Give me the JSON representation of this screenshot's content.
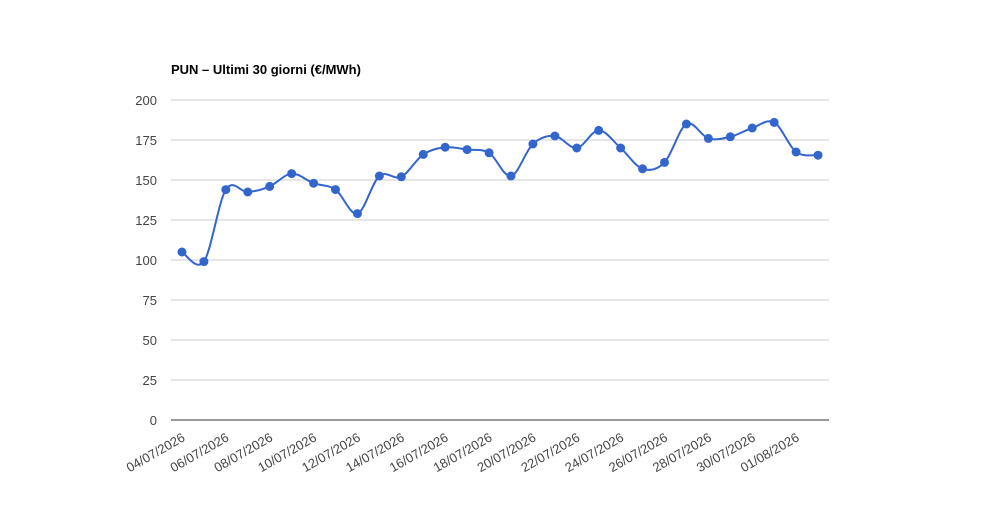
{
  "chart_data": {
    "type": "line",
    "title": "PUN – Ultimi 30 giorni (€/MWh)",
    "categories": [
      "04/07/2026",
      null,
      "06/07/2026",
      null,
      "08/07/2026",
      null,
      "10/07/2026",
      null,
      "12/07/2026",
      null,
      "14/07/2026",
      null,
      "16/07/2026",
      null,
      "18/07/2026",
      null,
      "20/07/2026",
      null,
      "22/07/2026",
      null,
      "24/07/2026",
      null,
      "26/07/2026",
      null,
      "28/07/2026",
      null,
      "30/07/2026",
      null,
      "01/08/2026",
      null
    ],
    "series": [
      {
        "name": "PUN",
        "color": "#3366cc",
        "values": [
          105,
          99,
          144,
          142.5,
          146,
          154,
          148,
          144,
          129,
          152.5,
          152,
          166,
          170.5,
          169,
          167,
          152.5,
          172.5,
          177.5,
          170,
          181,
          170,
          157,
          161,
          185,
          176,
          177,
          182.5,
          186,
          167.5,
          165.5
        ]
      }
    ],
    "ylim": [
      0,
      200
    ],
    "yticks": [
      0,
      25,
      50,
      75,
      100,
      125,
      150,
      175,
      200
    ],
    "grid": true
  }
}
